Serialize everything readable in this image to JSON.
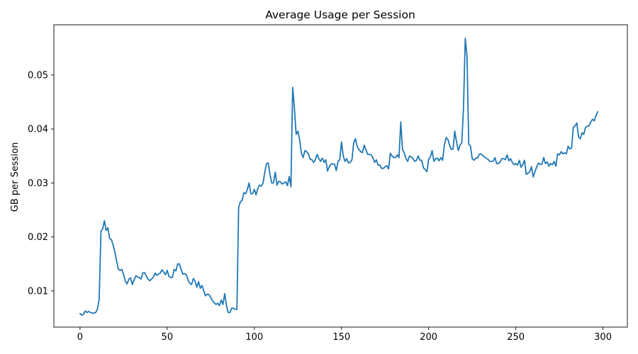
{
  "chart_data": {
    "type": "line",
    "title": "Average Usage per Session",
    "xlabel": "",
    "ylabel": "GB per Session",
    "xlim": [
      -15,
      314
    ],
    "ylim": [
      0.0033,
      0.0593
    ],
    "xticks": [
      0,
      50,
      100,
      150,
      200,
      250,
      300
    ],
    "yticks": [
      0.01,
      0.02,
      0.03,
      0.04,
      0.05
    ],
    "ytick_labels": [
      "0.01",
      "0.02",
      "0.03",
      "0.04",
      "0.05"
    ],
    "grid": false,
    "line_color": "#1f77b4",
    "series": [
      {
        "keypoints": [
          [
            0,
            0.0058
          ],
          [
            1,
            0.0055
          ],
          [
            2,
            0.0057
          ],
          [
            3,
            0.0063
          ],
          [
            4,
            0.006
          ],
          [
            5,
            0.0062
          ],
          [
            6,
            0.006
          ],
          [
            7,
            0.0059
          ],
          [
            8,
            0.0059
          ],
          [
            9,
            0.006
          ],
          [
            10,
            0.0066
          ],
          [
            11,
            0.0085
          ],
          [
            12,
            0.021
          ],
          [
            13,
            0.0215
          ],
          [
            14,
            0.023
          ],
          [
            15,
            0.0212
          ],
          [
            16,
            0.0217
          ],
          [
            17,
            0.0197
          ],
          [
            18,
            0.0195
          ],
          [
            19,
            0.0185
          ],
          [
            20,
            0.0172
          ],
          [
            21,
            0.0155
          ],
          [
            22,
            0.014
          ],
          [
            23,
            0.0138
          ],
          [
            24,
            0.014
          ],
          [
            25,
            0.013
          ],
          [
            26,
            0.0118
          ],
          [
            27,
            0.0113
          ],
          [
            28,
            0.0122
          ],
          [
            29,
            0.0124
          ],
          [
            30,
            0.0112
          ],
          [
            31,
            0.012
          ],
          [
            32,
            0.0128
          ],
          [
            33,
            0.0126
          ],
          [
            34,
            0.0125
          ],
          [
            35,
            0.0122
          ],
          [
            36,
            0.0133
          ],
          [
            37,
            0.0134
          ],
          [
            38,
            0.0128
          ],
          [
            39,
            0.0122
          ],
          [
            40,
            0.0119
          ],
          [
            41,
            0.0122
          ],
          [
            42,
            0.0125
          ],
          [
            43,
            0.0133
          ],
          [
            44,
            0.0129
          ],
          [
            45,
            0.0131
          ],
          [
            46,
            0.0133
          ],
          [
            47,
            0.0139
          ],
          [
            48,
            0.0135
          ],
          [
            49,
            0.013
          ],
          [
            50,
            0.0138
          ],
          [
            51,
            0.0127
          ],
          [
            52,
            0.0125
          ],
          [
            53,
            0.0125
          ],
          [
            54,
            0.014
          ],
          [
            55,
            0.0137
          ],
          [
            56,
            0.015
          ],
          [
            57,
            0.015
          ],
          [
            58,
            0.014
          ],
          [
            59,
            0.0131
          ],
          [
            60,
            0.0132
          ],
          [
            61,
            0.013
          ],
          [
            62,
            0.012
          ],
          [
            63,
            0.0114
          ],
          [
            64,
            0.0112
          ],
          [
            65,
            0.0123
          ],
          [
            66,
            0.0118
          ],
          [
            67,
            0.0107
          ],
          [
            68,
            0.0117
          ],
          [
            69,
            0.0105
          ],
          [
            70,
            0.011
          ],
          [
            71,
            0.01
          ],
          [
            72,
            0.0091
          ],
          [
            73,
            0.0094
          ],
          [
            74,
            0.0093
          ],
          [
            75,
            0.0088
          ],
          [
            76,
            0.0082
          ],
          [
            77,
            0.0078
          ],
          [
            78,
            0.0075
          ],
          [
            79,
            0.0077
          ],
          [
            80,
            0.0073
          ],
          [
            81,
            0.0083
          ],
          [
            82,
            0.0075
          ],
          [
            83,
            0.0095
          ],
          [
            84,
            0.0073
          ],
          [
            85,
            0.006
          ],
          [
            86,
            0.006
          ],
          [
            87,
            0.0068
          ],
          [
            88,
            0.0068
          ],
          [
            89,
            0.0066
          ],
          [
            90,
            0.0066
          ],
          [
            91,
            0.0255
          ],
          [
            92,
            0.0265
          ],
          [
            93,
            0.0268
          ],
          [
            94,
            0.0282
          ],
          [
            95,
            0.028
          ],
          [
            96,
            0.0288
          ],
          [
            97,
            0.03
          ],
          [
            98,
            0.028
          ],
          [
            99,
            0.028
          ],
          [
            100,
            0.0288
          ],
          [
            101,
            0.0278
          ],
          [
            102,
            0.029
          ],
          [
            103,
            0.0296
          ],
          [
            104,
            0.0294
          ],
          [
            105,
            0.03
          ],
          [
            106,
            0.032
          ],
          [
            107,
            0.0336
          ],
          [
            108,
            0.0337
          ],
          [
            109,
            0.0315
          ],
          [
            110,
            0.03
          ],
          [
            111,
            0.03
          ],
          [
            112,
            0.032
          ],
          [
            113,
            0.0296
          ],
          [
            114,
            0.0303
          ],
          [
            115,
            0.0302
          ],
          [
            116,
            0.0298
          ],
          [
            117,
            0.03
          ],
          [
            118,
            0.0302
          ],
          [
            119,
            0.0295
          ],
          [
            120,
            0.0312
          ],
          [
            121,
            0.0293
          ],
          [
            122,
            0.0477
          ],
          [
            123,
            0.0438
          ],
          [
            124,
            0.039
          ],
          [
            125,
            0.0396
          ],
          [
            126,
            0.038
          ],
          [
            127,
            0.0355
          ],
          [
            128,
            0.0347
          ],
          [
            129,
            0.036
          ],
          [
            130,
            0.0358
          ],
          [
            131,
            0.0354
          ],
          [
            132,
            0.0344
          ],
          [
            133,
            0.0343
          ],
          [
            134,
            0.0338
          ],
          [
            135,
            0.0343
          ],
          [
            136,
            0.0353
          ],
          [
            137,
            0.0345
          ],
          [
            138,
            0.034
          ],
          [
            139,
            0.0346
          ],
          [
            140,
            0.0338
          ],
          [
            141,
            0.0343
          ],
          [
            142,
            0.0322
          ],
          [
            143,
            0.033
          ],
          [
            144,
            0.0335
          ],
          [
            145,
            0.0335
          ],
          [
            146,
            0.0335
          ],
          [
            147,
            0.0323
          ],
          [
            148,
            0.034
          ],
          [
            149,
            0.0343
          ],
          [
            150,
            0.0376
          ],
          [
            151,
            0.035
          ],
          [
            152,
            0.034
          ],
          [
            153,
            0.0345
          ],
          [
            154,
            0.0337
          ],
          [
            155,
            0.0338
          ],
          [
            156,
            0.0343
          ],
          [
            157,
            0.0374
          ],
          [
            158,
            0.0382
          ],
          [
            159,
            0.0368
          ],
          [
            160,
            0.0362
          ],
          [
            161,
            0.0358
          ],
          [
            162,
            0.0356
          ],
          [
            163,
            0.037
          ],
          [
            164,
            0.0362
          ],
          [
            165,
            0.0353
          ],
          [
            166,
            0.0353
          ],
          [
            167,
            0.0352
          ],
          [
            168,
            0.0347
          ],
          [
            169,
            0.0338
          ],
          [
            170,
            0.0343
          ],
          [
            171,
            0.0333
          ],
          [
            172,
            0.0333
          ],
          [
            173,
            0.0327
          ],
          [
            174,
            0.0327
          ],
          [
            175,
            0.033
          ],
          [
            176,
            0.0332
          ],
          [
            177,
            0.0326
          ],
          [
            178,
            0.0355
          ],
          [
            179,
            0.035
          ],
          [
            180,
            0.0347
          ],
          [
            181,
            0.0347
          ],
          [
            182,
            0.0352
          ],
          [
            183,
            0.0347
          ],
          [
            184,
            0.0413
          ],
          [
            185,
            0.0362
          ],
          [
            186,
            0.0356
          ],
          [
            187,
            0.0345
          ],
          [
            188,
            0.034
          ],
          [
            189,
            0.035
          ],
          [
            190,
            0.0348
          ],
          [
            191,
            0.0345
          ],
          [
            192,
            0.034
          ],
          [
            193,
            0.0342
          ],
          [
            194,
            0.035
          ],
          [
            195,
            0.0342
          ],
          [
            196,
            0.0342
          ],
          [
            197,
            0.0328
          ],
          [
            198,
            0.0325
          ],
          [
            199,
            0.0321
          ],
          [
            200,
            0.0344
          ],
          [
            201,
            0.0348
          ],
          [
            202,
            0.036
          ],
          [
            203,
            0.034
          ],
          [
            204,
            0.0345
          ],
          [
            205,
            0.0346
          ],
          [
            206,
            0.0341
          ],
          [
            207,
            0.0347
          ],
          [
            208,
            0.0342
          ],
          [
            209,
            0.037
          ],
          [
            210,
            0.0384
          ],
          [
            211,
            0.0381
          ],
          [
            212,
            0.037
          ],
          [
            213,
            0.0362
          ],
          [
            214,
            0.0363
          ],
          [
            215,
            0.0396
          ],
          [
            216,
            0.0376
          ],
          [
            217,
            0.036
          ],
          [
            218,
            0.037
          ],
          [
            219,
            0.0374
          ],
          [
            220,
            0.044
          ],
          [
            221,
            0.0568
          ],
          [
            222,
            0.0535
          ],
          [
            223,
            0.0372
          ],
          [
            224,
            0.0368
          ],
          [
            225,
            0.0345
          ],
          [
            226,
            0.0342
          ],
          [
            227,
            0.0346
          ],
          [
            228,
            0.0346
          ],
          [
            229,
            0.0353
          ],
          [
            230,
            0.0354
          ],
          [
            231,
            0.0351
          ],
          [
            232,
            0.0348
          ],
          [
            233,
            0.0346
          ],
          [
            234,
            0.0344
          ],
          [
            235,
            0.034
          ],
          [
            236,
            0.034
          ],
          [
            237,
            0.034
          ],
          [
            238,
            0.0347
          ],
          [
            239,
            0.0336
          ],
          [
            240,
            0.0336
          ],
          [
            241,
            0.0339
          ],
          [
            242,
            0.0345
          ],
          [
            243,
            0.0345
          ],
          [
            244,
            0.0343
          ],
          [
            245,
            0.0352
          ],
          [
            246,
            0.0341
          ],
          [
            247,
            0.0345
          ],
          [
            248,
            0.0338
          ],
          [
            249,
            0.0334
          ],
          [
            250,
            0.0336
          ],
          [
            251,
            0.0333
          ],
          [
            252,
            0.0342
          ],
          [
            253,
            0.0329
          ],
          [
            254,
            0.0334
          ],
          [
            255,
            0.0342
          ],
          [
            256,
            0.0316
          ],
          [
            257,
            0.0318
          ],
          [
            258,
            0.0321
          ],
          [
            259,
            0.033
          ],
          [
            260,
            0.0311
          ],
          [
            261,
            0.0321
          ],
          [
            262,
            0.033
          ],
          [
            263,
            0.0337
          ],
          [
            264,
            0.0334
          ],
          [
            265,
            0.0335
          ],
          [
            266,
            0.0347
          ],
          [
            267,
            0.0336
          ],
          [
            268,
            0.0339
          ],
          [
            269,
            0.0331
          ],
          [
            270,
            0.0336
          ],
          [
            271,
            0.0334
          ],
          [
            272,
            0.034
          ],
          [
            273,
            0.0331
          ],
          [
            274,
            0.0354
          ],
          [
            275,
            0.0352
          ],
          [
            276,
            0.0358
          ],
          [
            277,
            0.0354
          ],
          [
            278,
            0.0356
          ],
          [
            279,
            0.0354
          ],
          [
            280,
            0.0368
          ],
          [
            281,
            0.0363
          ],
          [
            282,
            0.0365
          ],
          [
            283,
            0.0403
          ],
          [
            284,
            0.0406
          ],
          [
            285,
            0.0411
          ],
          [
            286,
            0.0385
          ],
          [
            287,
            0.0382
          ],
          [
            288,
            0.0393
          ],
          [
            289,
            0.039
          ],
          [
            290,
            0.0403
          ],
          [
            291,
            0.0405
          ],
          [
            292,
            0.0406
          ],
          [
            293,
            0.0413
          ],
          [
            294,
            0.0418
          ],
          [
            295,
            0.0415
          ],
          [
            296,
            0.0425
          ],
          [
            297,
            0.0432
          ]
        ]
      }
    ]
  }
}
